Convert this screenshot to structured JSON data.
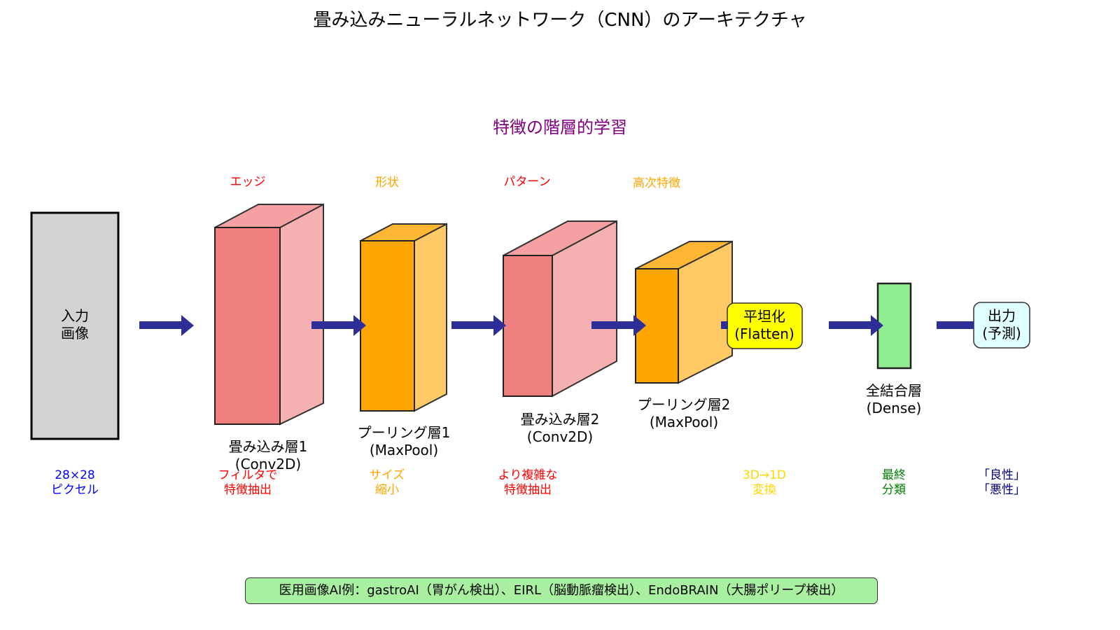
{
  "title": "畳み込みニューラルネットワーク（CNN）のアーキテクチャ",
  "subtitle": "特徴の階層的学習",
  "input": {
    "label_line1": "入力",
    "label_line2": "画像",
    "note_line1": "28×28",
    "note_line2": "ピクセル"
  },
  "conv1": {
    "feature": "エッジ",
    "label_line1": "畳み込み層1",
    "label_line2": "(Conv2D)",
    "note_line1": "フィルタで",
    "note_line2": "特徴抽出"
  },
  "pool1": {
    "feature": "形状",
    "label_line1": "プーリング層1",
    "label_line2": "(MaxPool)",
    "note_line1": "サイズ",
    "note_line2": "縮小"
  },
  "conv2": {
    "feature": "パターン",
    "label_line1": "畳み込み層2",
    "label_line2": "(Conv2D)",
    "note_line1": "より複雑な",
    "note_line2": "特徴抽出"
  },
  "pool2": {
    "feature": "高次特徴",
    "label_line1": "プーリング層2",
    "label_line2": "(MaxPool)"
  },
  "flatten": {
    "label_line1": "平坦化",
    "label_line2": "(Flatten)",
    "note_line1": "3D→1D",
    "note_line2": "変換"
  },
  "dense": {
    "label_line1": "全結合層",
    "label_line2": "(Dense)",
    "note_line1": "最終",
    "note_line2": "分類"
  },
  "output": {
    "label_line1": "出力",
    "label_line2": "(予測)",
    "note_line1": "「良性」",
    "note_line2": "「悪性」"
  },
  "footer": "医用画像AI例：gastroAI（胃がん検出）、EIRL（脳動脈瘤検出）、EndoBRAIN（大腸ポリープ検出）",
  "colors": {
    "conv_front": "#f08080",
    "conv_side": "#f5b0b2",
    "pool_front": "#ffa500",
    "pool_side": "#ffc966",
    "input_fill": "#d3d3d3",
    "flatten_fill": "#ffff00",
    "dense_fill": "#90ee90",
    "output_fill": "#e0ffff",
    "arrow": "#2e2e99",
    "footer_fill": "#a8f0a0",
    "red_text": "#ff0000",
    "orange_text": "#ffa500",
    "blue_text": "#0000ff",
    "gold_text": "#ffd700",
    "green_text": "#008000",
    "navy_text": "#000080",
    "purple_text": "#800080"
  }
}
